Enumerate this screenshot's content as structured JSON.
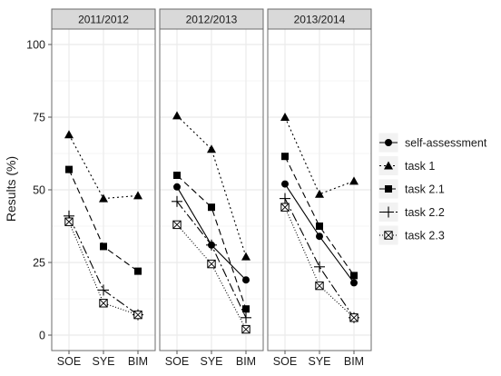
{
  "chart_data": {
    "type": "line",
    "ylabel": "Results (%)",
    "xlabel": "",
    "ylim": [
      0,
      100
    ],
    "y_ticks": [
      "0",
      "25",
      "50",
      "75",
      "100"
    ],
    "y_tick_values": [
      0,
      25,
      50,
      75,
      100
    ],
    "categories": [
      "SOE",
      "SYE",
      "BIM"
    ],
    "grid": true,
    "legend_position": "right",
    "facets": [
      {
        "title": "2011/2012",
        "series": [
          {
            "name": "self-assessment",
            "values": [
              null,
              null,
              null
            ]
          },
          {
            "name": "task 1",
            "values": [
              69,
              47,
              48
            ]
          },
          {
            "name": "task 2.1",
            "values": [
              57,
              30.5,
              22
            ]
          },
          {
            "name": "task 2.2",
            "values": [
              41,
              15.5,
              7
            ]
          },
          {
            "name": "task 2.3",
            "values": [
              39,
              11,
              7
            ]
          }
        ]
      },
      {
        "title": "2012/2013",
        "series": [
          {
            "name": "self-assessment",
            "values": [
              51,
              31,
              19
            ]
          },
          {
            "name": "task 1",
            "values": [
              75.5,
              64,
              27
            ]
          },
          {
            "name": "task 2.1",
            "values": [
              55,
              44,
              9
            ]
          },
          {
            "name": "task 2.2",
            "values": [
              46,
              31,
              6
            ]
          },
          {
            "name": "task 2.3",
            "values": [
              38,
              24.5,
              2
            ]
          }
        ]
      },
      {
        "title": "2013/2014",
        "series": [
          {
            "name": "self-assessment",
            "values": [
              52,
              34,
              18
            ]
          },
          {
            "name": "task 1",
            "values": [
              75,
              48.5,
              53
            ]
          },
          {
            "name": "task 2.1",
            "values": [
              61.5,
              37.5,
              20.5
            ]
          },
          {
            "name": "task 2.2",
            "values": [
              47,
              23.5,
              6
            ]
          },
          {
            "name": "task 2.3",
            "values": [
              44,
              17,
              6
            ]
          }
        ]
      }
    ],
    "series_styles": [
      {
        "name": "self-assessment",
        "marker": "circle",
        "dash": "",
        "color": "#000000"
      },
      {
        "name": "task 1",
        "marker": "triangle",
        "dash": "2,3",
        "color": "#000000"
      },
      {
        "name": "task 2.1",
        "marker": "square",
        "dash": "7,4",
        "color": "#000000"
      },
      {
        "name": "task 2.2",
        "marker": "plus",
        "dash": "10,3,2,3",
        "color": "#000000"
      },
      {
        "name": "task 2.3",
        "marker": "boxcross",
        "dash": "1,2",
        "color": "#000000"
      }
    ],
    "colors": {
      "strip_bg": "#d9d9d9",
      "panel_border": "#6b6b6b",
      "grid_major": "#ebebeb",
      "grid_minor": "#f5f5f5"
    }
  }
}
